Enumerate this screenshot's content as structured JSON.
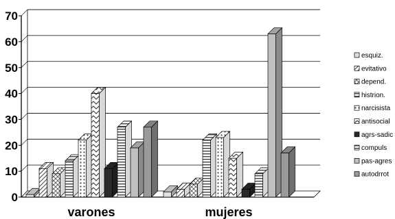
{
  "chart_data": {
    "type": "bar",
    "title": "",
    "xlabel": "",
    "ylabel": "",
    "ylim": [
      0,
      70
    ],
    "yticks": [
      0,
      10,
      20,
      30,
      40,
      50,
      60,
      70
    ],
    "grid": true,
    "three_d": true,
    "legend_position": "right",
    "categories": [
      "varones",
      "mujeres"
    ],
    "series": [
      {
        "name": "esquiz.",
        "values": [
          1,
          2
        ],
        "fill": "#e0e0e0",
        "pattern": "none"
      },
      {
        "name": "evitativo",
        "values": [
          11,
          3
        ],
        "fill": "#ffffff",
        "pattern": "hatch"
      },
      {
        "name": "depend.",
        "values": [
          9,
          5
        ],
        "fill": "#ffffff",
        "pattern": "cross"
      },
      {
        "name": "histrion.",
        "values": [
          14,
          22
        ],
        "fill": "#ffffff",
        "pattern": "hstripe"
      },
      {
        "name": "narcisista",
        "values": [
          22,
          23
        ],
        "fill": "#ffffff",
        "pattern": "dotgrid"
      },
      {
        "name": "antisocial",
        "values": [
          40,
          15
        ],
        "fill": "#ffffff",
        "pattern": "chev"
      },
      {
        "name": "agrs-sadic",
        "values": [
          11,
          3
        ],
        "fill": "#2a2a2a",
        "pattern": "none"
      },
      {
        "name": "compuls",
        "values": [
          27,
          9
        ],
        "fill": "#ffffff",
        "pattern": "hstripe"
      },
      {
        "name": "pas-agres",
        "values": [
          19,
          63
        ],
        "fill": "#c0c0c0",
        "pattern": "none"
      },
      {
        "name": "autodrrot",
        "values": [
          27,
          17
        ],
        "fill": "#9a9a9a",
        "pattern": "none"
      }
    ]
  }
}
